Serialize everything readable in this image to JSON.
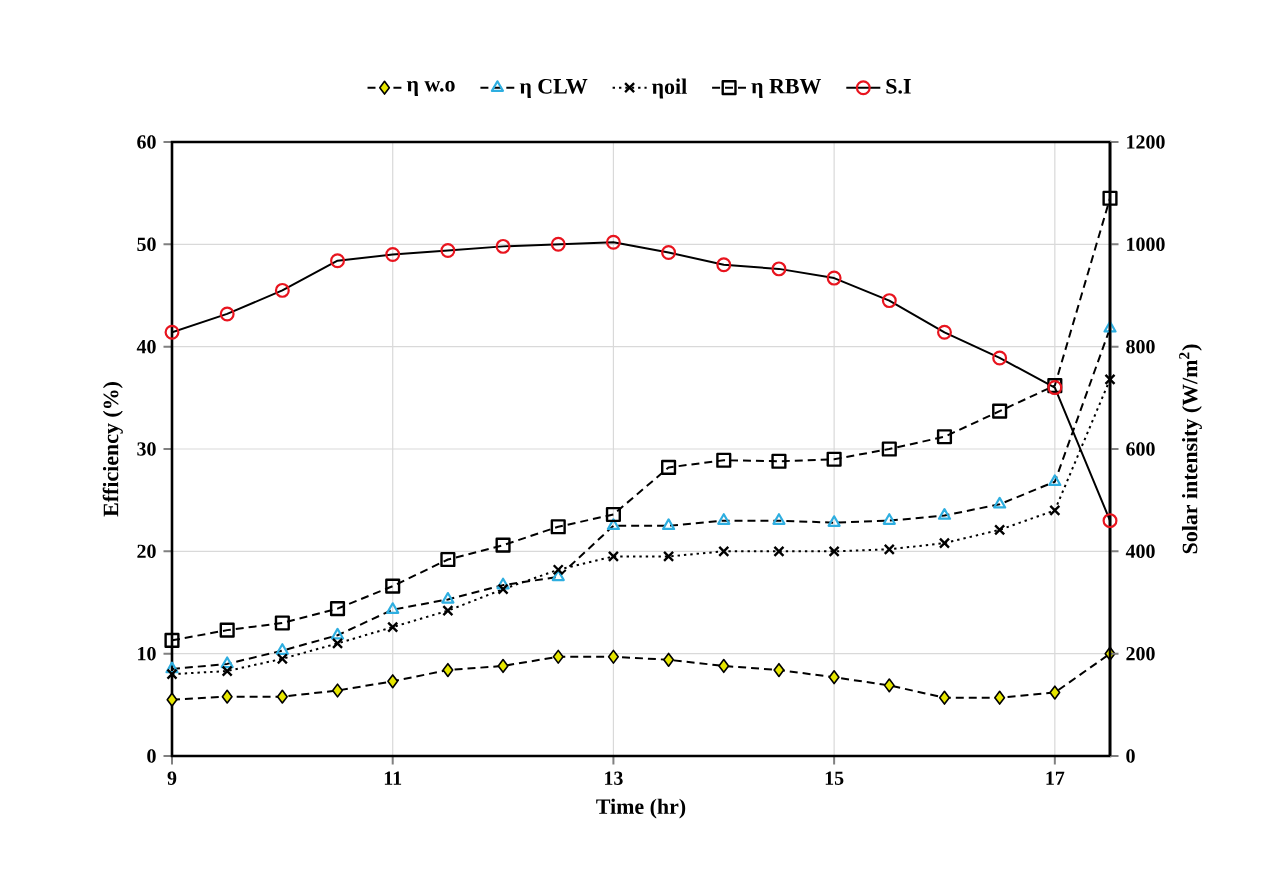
{
  "chart_data": {
    "type": "line",
    "xlabel": "Time (hr)",
    "ylabel": "Efficiency (%)",
    "y2label": "Solar intensity (W/m$^{2}$)",
    "x": [
      9,
      9.5,
      10,
      10.5,
      11,
      11.5,
      12,
      12.5,
      13,
      13.5,
      14,
      14.5,
      15,
      15.5,
      16,
      16.5,
      17,
      17.5
    ],
    "xlim": [
      9,
      17.5
    ],
    "xticks": [
      9,
      11,
      13,
      15,
      17
    ],
    "ylim": [
      0,
      60
    ],
    "yticks": [
      0,
      10,
      20,
      30,
      40,
      50,
      60
    ],
    "y2lim": [
      0,
      1200
    ],
    "y2ticks": [
      0,
      200,
      400,
      600,
      800,
      1000,
      1200
    ],
    "grid": true,
    "legend": "top",
    "series": [
      {
        "name": "η w.o",
        "color": "#e6e600",
        "marker": "diamond",
        "line_style": "dashed",
        "values": [
          5.5,
          5.8,
          5.8,
          6.4,
          7.3,
          8.4,
          8.8,
          9.7,
          9.7,
          9.4,
          8.8,
          8.4,
          7.7,
          6.9,
          5.7,
          5.7,
          6.2,
          10
        ]
      },
      {
        "name": "η CLW",
        "color": "#2eaee0",
        "marker": "triangle",
        "line_style": "dashed",
        "values": [
          8.5,
          9,
          10.3,
          11.8,
          14.3,
          15.3,
          16.7,
          17.5,
          22.5,
          22.5,
          23,
          23,
          22.8,
          23,
          23.5,
          24.6,
          26.8,
          41.8
        ]
      },
      {
        "name": "ηoil",
        "color": "#000000",
        "marker": "cross",
        "line_style": "dotted",
        "values": [
          8,
          8.3,
          9.5,
          11,
          12.6,
          14.2,
          16.3,
          18.2,
          19.5,
          19.5,
          20,
          20,
          20,
          20.2,
          20.8,
          22.1,
          24,
          36.8
        ]
      },
      {
        "name": "η RBW",
        "color": "#000000",
        "marker": "square",
        "line_style": "dashed",
        "values": [
          11.3,
          12.3,
          13,
          14.4,
          16.6,
          19.2,
          20.6,
          22.4,
          23.6,
          28.2,
          28.9,
          28.8,
          29,
          30,
          31.2,
          33.7,
          36.2,
          54.5
        ]
      },
      {
        "name": "S.I",
        "color": "#e8141e",
        "marker": "circle",
        "line_style": "solid",
        "axis": "y2",
        "values": [
          828,
          864,
          910,
          968,
          980,
          988,
          996,
          1000,
          1004,
          984,
          960,
          952,
          934,
          890,
          828,
          778,
          720,
          460
        ]
      }
    ]
  }
}
